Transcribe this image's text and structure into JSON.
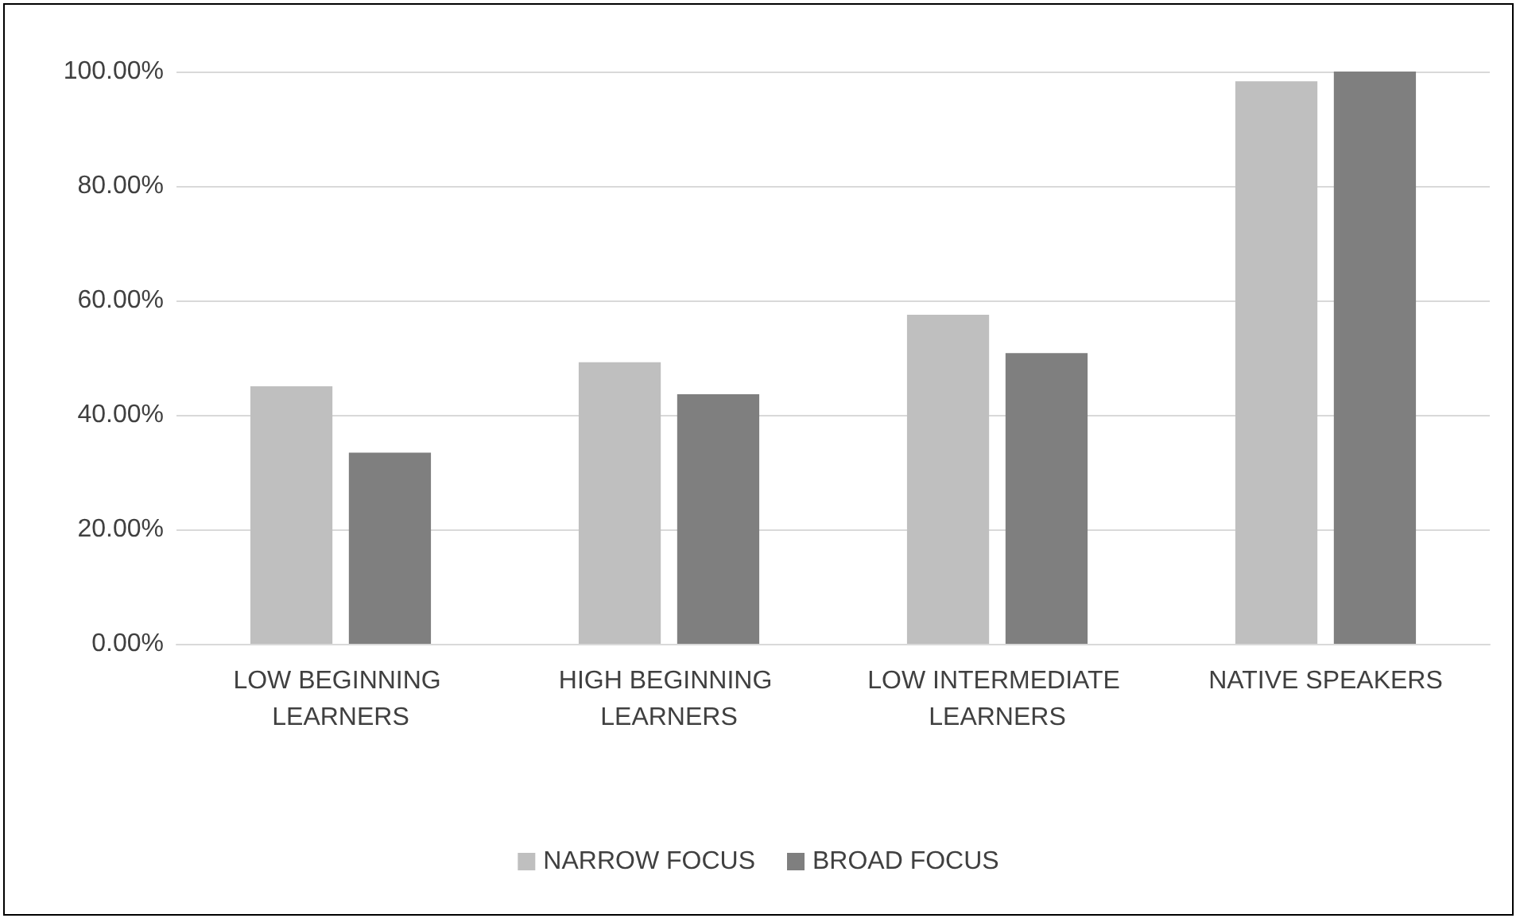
{
  "chart_data": {
    "type": "bar",
    "categories": [
      "LOW BEGINNING LEARNERS",
      "HIGH BEGINNING LEARNERS",
      "LOW INTERMEDIATE LEARNERS",
      "NATIVE SPEAKERS"
    ],
    "series": [
      {
        "name": "NARROW FOCUS",
        "color": "#bfbfbf",
        "values": [
          45.0,
          49.2,
          57.5,
          98.3
        ]
      },
      {
        "name": "BROAD FOCUS",
        "color": "#7f7f7f",
        "values": [
          33.4,
          43.6,
          50.8,
          100
        ]
      }
    ],
    "ylim": [
      0,
      100
    ],
    "yticks": [
      {
        "value": 0,
        "label": "0.00%"
      },
      {
        "value": 20,
        "label": "20.00%"
      },
      {
        "value": 40,
        "label": "40.00%"
      },
      {
        "value": 60,
        "label": "60.00%"
      },
      {
        "value": 80,
        "label": "80.00%"
      },
      {
        "value": 100,
        "label": "100.00%"
      }
    ],
    "grid": "y",
    "legend": "bottom"
  }
}
